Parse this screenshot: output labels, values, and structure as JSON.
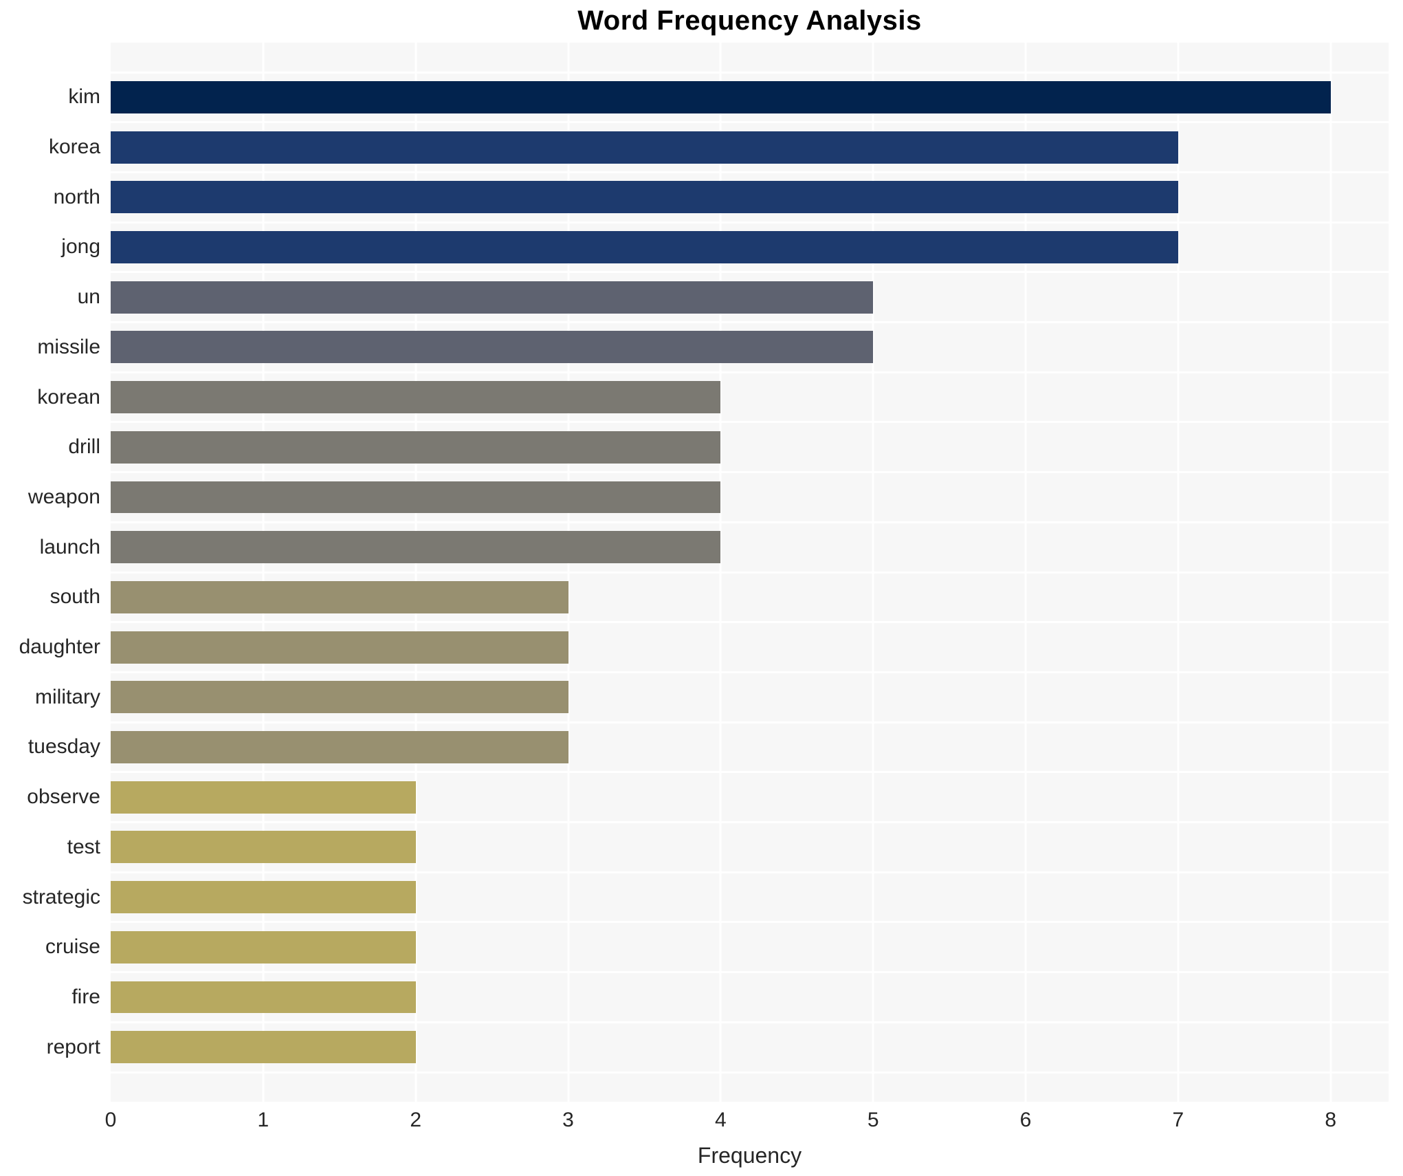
{
  "chart_data": {
    "type": "bar",
    "orientation": "horizontal",
    "title": "Word Frequency Analysis",
    "xlabel": "Frequency",
    "ylabel": "",
    "categories": [
      "kim",
      "korea",
      "north",
      "jong",
      "un",
      "missile",
      "korean",
      "drill",
      "weapon",
      "launch",
      "south",
      "daughter",
      "military",
      "tuesday",
      "observe",
      "test",
      "strategic",
      "cruise",
      "fire",
      "report"
    ],
    "values": [
      8,
      7,
      7,
      7,
      5,
      5,
      4,
      4,
      4,
      4,
      3,
      3,
      3,
      3,
      2,
      2,
      2,
      2,
      2,
      2
    ],
    "xticks": [
      0,
      1,
      2,
      3,
      4,
      5,
      6,
      7,
      8
    ],
    "xlim": [
      0,
      8.38
    ],
    "grid": "white gridlines on light gray panel",
    "legend_position": "none",
    "colormap": "cividis-like, darkest for highest frequency",
    "bar_colors_by_value": {
      "8": "#02234e",
      "7": "#1d3a6e",
      "5": "#5e6270",
      "4": "#7b7972",
      "3": "#989070",
      "2": "#b7a960"
    },
    "appearance": {
      "panel_background": "#f7f7f7",
      "gridline_color": "#ffffff",
      "title_color": "#000000",
      "tick_label_color": "#262626",
      "page_background": "#ffffff"
    }
  }
}
